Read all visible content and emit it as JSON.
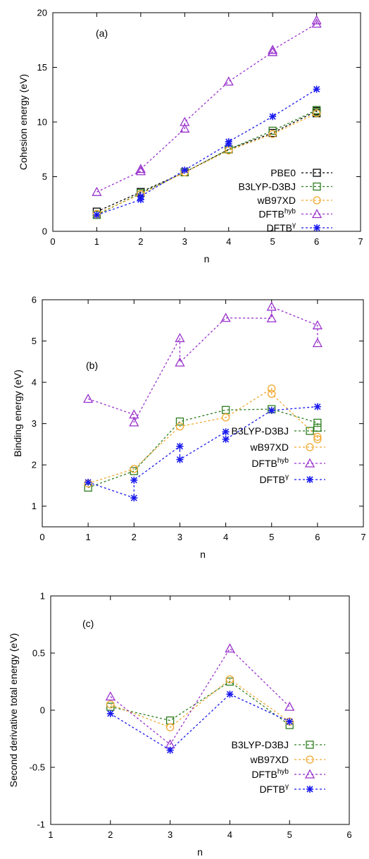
{
  "chart_data": [
    {
      "type": "line",
      "panel_label": "(a)",
      "xlabel": "n",
      "ylabel": "Cohesion energy (eV)",
      "xlim": [
        0,
        7
      ],
      "ylim": [
        0,
        20
      ],
      "xticks": [
        "0",
        "1",
        "2",
        "3",
        "4",
        "5",
        "6",
        "7"
      ],
      "yticks": [
        "0",
        "5",
        "10",
        "15",
        "20"
      ],
      "grid": false,
      "legend_position": "bottom-right",
      "series": [
        {
          "name": "PBE0",
          "name_sup": "",
          "color": "#000000",
          "marker": "square",
          "points": [
            [
              1,
              1.8
            ],
            [
              2,
              3.6
            ],
            [
              3,
              5.4
            ],
            [
              4,
              7.5
            ],
            [
              5,
              9.0
            ],
            [
              6,
              11.0
            ],
            [
              6,
              10.8
            ]
          ]
        },
        {
          "name": "B3LYP-D3BJ",
          "name_sup": "",
          "color": "#2e7d20",
          "marker": "square",
          "points": [
            [
              1,
              1.5
            ],
            [
              2,
              3.5
            ],
            [
              3,
              5.4
            ],
            [
              4,
              7.5
            ],
            [
              5,
              9.2
            ],
            [
              6,
              11.1
            ],
            [
              6,
              10.9
            ]
          ]
        },
        {
          "name": "wB97XD",
          "name_sup": "",
          "color": "#f0a830",
          "marker": "circle",
          "points": [
            [
              1,
              1.6
            ],
            [
              2,
              3.4
            ],
            [
              3,
              5.4
            ],
            [
              4,
              7.4
            ],
            [
              5,
              8.9
            ],
            [
              6,
              10.8
            ]
          ]
        },
        {
          "name": "DFTB",
          "name_sup": "hyb",
          "color": "#9932cc",
          "marker": "triangle",
          "points": [
            [
              1,
              3.6
            ],
            [
              2,
              5.5
            ],
            [
              2,
              5.7
            ],
            [
              3,
              9.4
            ],
            [
              3,
              10.0
            ],
            [
              4,
              13.7
            ],
            [
              5,
              16.4
            ],
            [
              5,
              16.6
            ],
            [
              6,
              19.0
            ],
            [
              6,
              19.3
            ]
          ]
        },
        {
          "name": "DFTB",
          "name_sup": "γ",
          "color": "#1a1aee",
          "marker": "star",
          "points": [
            [
              1,
              1.5
            ],
            [
              2,
              2.9
            ],
            [
              2,
              3.2
            ],
            [
              3,
              5.6
            ],
            [
              4,
              8.0
            ],
            [
              4,
              8.2
            ],
            [
              5,
              10.5
            ],
            [
              6,
              13.0
            ]
          ]
        }
      ]
    },
    {
      "type": "line",
      "panel_label": "(b)",
      "xlabel": "n",
      "ylabel": "Binding energy (eV)",
      "xlim": [
        0,
        7
      ],
      "ylim": [
        0.5,
        6
      ],
      "xticks": [
        "0",
        "1",
        "2",
        "3",
        "4",
        "5",
        "6",
        "7"
      ],
      "yticks": [
        "1",
        "2",
        "3",
        "4",
        "5",
        "6"
      ],
      "grid": false,
      "legend_position": "bottom-right",
      "series": [
        {
          "name": "B3LYP-D3BJ",
          "name_sup": "",
          "color": "#2e7d20",
          "marker": "square",
          "points": [
            [
              1,
              1.45
            ],
            [
              2,
              1.85
            ],
            [
              3,
              3.05
            ],
            [
              4,
              3.33
            ],
            [
              5,
              3.35
            ],
            [
              6,
              3.02
            ],
            [
              6,
              2.9
            ]
          ]
        },
        {
          "name": "wB97XD",
          "name_sup": "",
          "color": "#f0a830",
          "marker": "circle",
          "points": [
            [
              1,
              1.55
            ],
            [
              2,
              1.9
            ],
            [
              3,
              2.93
            ],
            [
              4,
              3.15
            ],
            [
              5,
              3.85
            ],
            [
              5,
              3.72
            ],
            [
              6,
              2.68
            ],
            [
              6,
              2.62
            ]
          ]
        },
        {
          "name": "DFTB",
          "name_sup": "hyb",
          "color": "#9932cc",
          "marker": "triangle",
          "points": [
            [
              1,
              3.6
            ],
            [
              2,
              3.22
            ],
            [
              2,
              3.03
            ],
            [
              3,
              5.07
            ],
            [
              3,
              4.48
            ],
            [
              4,
              5.56
            ],
            [
              5,
              5.55
            ],
            [
              5,
              5.83
            ],
            [
              6,
              5.38
            ],
            [
              6,
              4.95
            ]
          ]
        },
        {
          "name": "DFTB",
          "name_sup": "γ",
          "color": "#1a1aee",
          "marker": "star",
          "points": [
            [
              1,
              1.58
            ],
            [
              2,
              1.2
            ],
            [
              2,
              1.63
            ],
            [
              3,
              2.45
            ],
            [
              3,
              2.13
            ],
            [
              4,
              2.8
            ],
            [
              4,
              2.62
            ],
            [
              5,
              3.32
            ],
            [
              6,
              3.41
            ]
          ]
        }
      ]
    },
    {
      "type": "line",
      "panel_label": "(c)",
      "xlabel": "n",
      "ylabel": "Second derivative total energy (eV)",
      "xlim": [
        1,
        6
      ],
      "ylim": [
        -1,
        1
      ],
      "xticks": [
        "1",
        "2",
        "3",
        "4",
        "5",
        "6"
      ],
      "yticks": [
        "-1",
        "-0.5",
        "0",
        "0.5",
        "1"
      ],
      "grid": false,
      "legend_position": "bottom-right",
      "series": [
        {
          "name": "B3LYP-D3BJ",
          "name_sup": "",
          "color": "#2e7d20",
          "marker": "square",
          "points": [
            [
              2,
              0.03
            ],
            [
              3,
              -0.09
            ],
            [
              4,
              0.25
            ],
            [
              5,
              -0.13
            ]
          ]
        },
        {
          "name": "wB97XD",
          "name_sup": "",
          "color": "#f0a830",
          "marker": "circle",
          "points": [
            [
              2,
              0.05
            ],
            [
              3,
              -0.15
            ],
            [
              4,
              0.27
            ],
            [
              5,
              -0.1
            ]
          ]
        },
        {
          "name": "DFTB",
          "name_sup": "hyb",
          "color": "#9932cc",
          "marker": "triangle",
          "points": [
            [
              2,
              0.12
            ],
            [
              3,
              -0.3
            ],
            [
              4,
              0.54
            ],
            [
              5,
              0.03
            ]
          ]
        },
        {
          "name": "DFTB",
          "name_sup": "γ",
          "color": "#1a1aee",
          "marker": "star",
          "points": [
            [
              2,
              -0.03
            ],
            [
              3,
              -0.35
            ],
            [
              4,
              0.14
            ],
            [
              5,
              -0.1
            ]
          ]
        }
      ]
    }
  ]
}
